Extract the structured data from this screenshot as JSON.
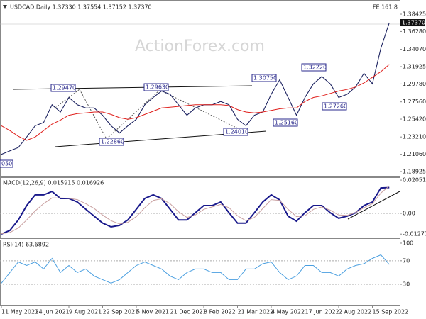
{
  "chart_data": [
    {
      "type": "line",
      "title": "USDCAD,Daily 1.37330 1.37554 1.37152 1.37370",
      "categories": [
        "11 May 2021",
        null,
        null,
        null,
        "24 Jun 2021",
        null,
        null,
        null,
        "9 Aug 2021",
        null,
        null,
        null,
        "22 Sep 2021",
        null,
        null,
        null,
        "5 Nov 2021",
        null,
        null,
        null,
        "21 Dec 2021",
        null,
        null,
        null,
        "3 Feb 2022",
        null,
        null,
        null,
        "21 Mar 2022",
        null,
        null,
        null,
        "4 May 2022",
        null,
        null,
        null,
        "17 Jun 2022",
        null,
        null,
        null,
        "2 Aug 2022",
        null,
        null,
        null,
        "15 Sep 2022",
        null,
        null
      ],
      "series": [
        {
          "color": "#1c2260",
          "values": [
            1.2105,
            1.215,
            1.219,
            1.232,
            1.246,
            1.25,
            1.272,
            1.263,
            1.281,
            1.272,
            1.268,
            1.268,
            1.259,
            1.246,
            1.237,
            1.246,
            1.254,
            1.272,
            1.281,
            1.289,
            1.285,
            1.272,
            1.259,
            1.268,
            1.272,
            1.272,
            1.276,
            1.272,
            1.254,
            1.246,
            1.259,
            1.263,
            1.285,
            1.303,
            1.281,
            1.259,
            1.281,
            1.298,
            1.307,
            1.298,
            1.281,
            1.285,
            1.294,
            1.311,
            1.298,
            1.342,
            1.3737
          ]
        },
        {
          "color": "#e0201c",
          "values": [
            1.246,
            1.24,
            1.233,
            1.228,
            1.232,
            1.24,
            1.248,
            1.253,
            1.259,
            1.261,
            1.262,
            1.263,
            1.263,
            1.26,
            1.256,
            1.254,
            1.256,
            1.26,
            1.264,
            1.268,
            1.269,
            1.27,
            1.271,
            1.272,
            1.272,
            1.272,
            1.272,
            1.271,
            1.266,
            1.263,
            1.262,
            1.263,
            1.265,
            1.267,
            1.268,
            1.268,
            1.276,
            1.281,
            1.283,
            1.286,
            1.289,
            1.291,
            1.294,
            1.299,
            1.306,
            1.313,
            1.322
          ]
        }
      ],
      "ylim": [
        1.1857,
        1.3992
      ],
      "yticks": [
        1.38425,
        {
          "value": 1.3628,
          "label": "1.36280"
        },
        {
          "value": 1.3407,
          "label": "1.34070"
        },
        1.31925,
        {
          "value": 1.2978,
          "label": "1.29780"
        },
        {
          "value": 1.2756,
          "label": "1.27560"
        },
        {
          "value": 1.2542,
          "label": "1.25420"
        },
        {
          "value": 1.2321,
          "label": "1.23210"
        },
        {
          "value": 1.2106,
          "label": "1.21060"
        },
        1.18925
      ],
      "last_price": {
        "value": 1.3737,
        "label": "1.37370"
      },
      "annotations": [
        "1.29470",
        "1.29630",
        "1.30750",
        "1.32220",
        "1.27260",
        "1.25160",
        "1.24010",
        "1.22860",
        "050",
        "FE 161.8",
        "ActionForex.com"
      ]
    },
    {
      "type": "line",
      "title": "MACD(12,26,9) 0.015915 0.016926",
      "series": [
        {
          "color": "#1a1a8c",
          "values": [
            -0.0127,
            -0.0105,
            -0.004,
            0.0048,
            0.0114,
            0.0114,
            0.0135,
            0.0092,
            0.0092,
            0.007,
            0.0026,
            -0.0017,
            -0.006,
            -0.0083,
            -0.0074,
            -0.004,
            0.0026,
            0.0092,
            0.0114,
            0.0092,
            0.0026,
            -0.004,
            -0.004,
            0.0004,
            0.0048,
            0.0048,
            0.007,
            0.0004,
            -0.006,
            -0.006,
            0.0004,
            0.007,
            0.0114,
            0.0083,
            -0.0017,
            -0.0048,
            0.0004,
            0.0048,
            0.0048,
            0.0004,
            -0.003,
            -0.0017,
            0.0004,
            0.0048,
            0.007,
            0.0157,
            0.015915
          ]
        },
        {
          "color": "#c9a0a0",
          "values": [
            -0.0125,
            -0.0118,
            -0.009,
            -0.004,
            0.0015,
            0.006,
            0.0095,
            0.0095,
            0.0093,
            0.0085,
            0.006,
            0.003,
            -0.001,
            -0.0045,
            -0.0065,
            -0.0055,
            -0.002,
            0.0035,
            0.008,
            0.009,
            0.006,
            0.001,
            -0.0025,
            -0.001,
            0.0025,
            0.004,
            0.0055,
            0.0035,
            -0.0015,
            -0.0045,
            -0.0025,
            0.003,
            0.0085,
            0.008,
            0.0025,
            -0.002,
            -0.0015,
            0.0025,
            0.004,
            0.002,
            -0.001,
            -0.0012,
            0.0005,
            0.0035,
            0.006,
            0.0125,
            0.016926
          ]
        }
      ],
      "ylim": [
        -0.0153,
        0.0223
      ],
      "yticks": [
        0.020518,
        {
          "value": 0,
          "label": "0.00"
        },
        -0.012771
      ]
    },
    {
      "type": "line",
      "title": "RSI(14) 63.6892",
      "series": [
        {
          "color": "#4a9fe0",
          "values": [
            32,
            50,
            68,
            62,
            68,
            56,
            74,
            50,
            62,
            50,
            56,
            44,
            38,
            32,
            38,
            50,
            62,
            68,
            62,
            56,
            44,
            38,
            50,
            56,
            56,
            50,
            50,
            38,
            38,
            56,
            56,
            65,
            68,
            50,
            38,
            44,
            62,
            62,
            50,
            50,
            44,
            56,
            62,
            65,
            74,
            80,
            63.6892
          ]
        }
      ],
      "ylim": [
        -5,
        106
      ],
      "yticks": [
        100,
        70,
        30
      ],
      "levels": [
        70,
        30
      ]
    }
  ]
}
